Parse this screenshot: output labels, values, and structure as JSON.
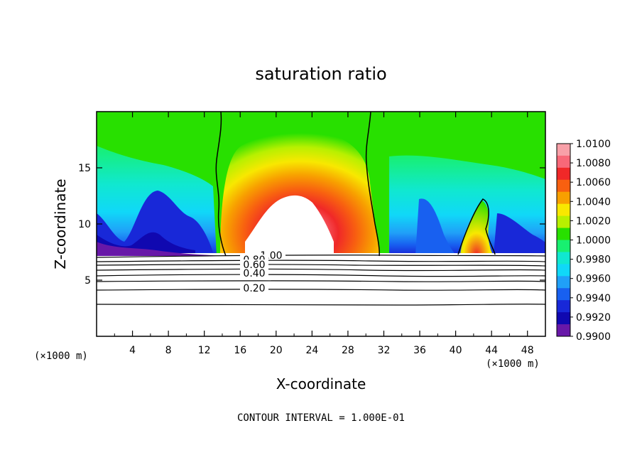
{
  "chart_data": {
    "type": "heatmap",
    "title": "saturation ratio",
    "xlabel": "X-coordinate",
    "ylabel": "Z-coordinate",
    "x_unit": "(×1000 m)",
    "xlim": [
      0,
      50
    ],
    "ylim": [
      0,
      20
    ],
    "xticks": [
      "4",
      "8",
      "12",
      "16",
      "20",
      "24",
      "28",
      "32",
      "36",
      "40",
      "44",
      "48"
    ],
    "yticks": [
      "5",
      "10",
      "15"
    ],
    "colorbar": {
      "labels": [
        "1.0100",
        "1.0080",
        "1.0060",
        "1.0040",
        "1.0020",
        "1.0000",
        "0.9980",
        "0.9960",
        "0.9940",
        "0.9920",
        "0.9900"
      ],
      "colors": [
        "#f8a0a8",
        "#f86878",
        "#f02828",
        "#f86010",
        "#f8a000",
        "#f8e800",
        "#b8f000",
        "#28e000",
        "#18f070",
        "#10e8d0",
        "#10d8f8",
        "#20a0f8",
        "#1860f0",
        "#1828d8",
        "#1008b0",
        "#6818a8"
      ]
    },
    "contour_labels": [
      "1.00",
      "0.80",
      "0.60",
      "0.40",
      "0.20"
    ],
    "contour_levels": [
      1.0,
      0.8,
      0.6,
      0.4,
      0.2
    ],
    "footer": "CONTOUR INTERVAL = 1.000E-01",
    "grid": false
  }
}
